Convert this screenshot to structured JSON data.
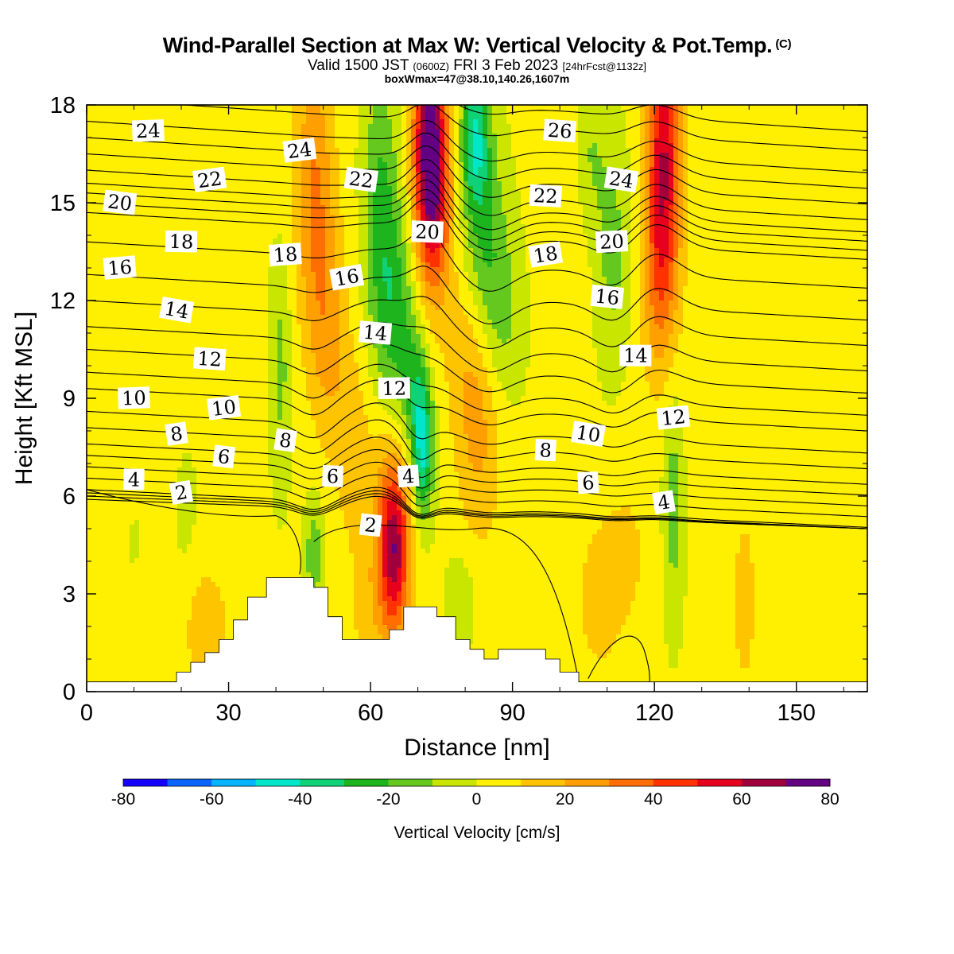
{
  "title": "Wind-Parallel Section at Max W: Vertical Velocity & Pot.Temp.",
  "title_mark": "(C)",
  "subtitle": {
    "prefix": "Valid 1500 JST",
    "utc": "(0600Z)",
    "date": "FRI 3 Feb 2023",
    "forecast": "[24hrFcst@1132z]"
  },
  "subtitle2": "boxWmax=47@38.10,140.26,1607m",
  "chart_data": {
    "type": "heatmap",
    "xlabel": "Distance [nm]",
    "ylabel": "Height [Kft MSL]",
    "xlim": [
      0,
      165
    ],
    "ylim": [
      0,
      18
    ],
    "xticks": [
      0,
      30,
      60,
      90,
      120,
      150
    ],
    "yticks": [
      0,
      3,
      6,
      9,
      12,
      15,
      18
    ],
    "grid": false,
    "colorbar": {
      "label": "Vertical Velocity [cm/s]",
      "placement": "bottom",
      "ticks": [
        -80,
        -60,
        -40,
        -20,
        0,
        20,
        40,
        60,
        80
      ],
      "bins": [
        -80,
        -70,
        -60,
        -50,
        -40,
        -30,
        -20,
        -10,
        0,
        10,
        20,
        30,
        40,
        50,
        60,
        70,
        80
      ],
      "colors": [
        "#1400ff",
        "#0a64ff",
        "#00b4ff",
        "#00e6c8",
        "#0fd278",
        "#1eb41e",
        "#64c81e",
        "#c8e600",
        "#ffef00",
        "#ffc400",
        "#ffa000",
        "#ff6e00",
        "#ff3200",
        "#e6001e",
        "#a0003c",
        "#640082"
      ]
    },
    "terrain_label": "",
    "terrain": [
      [
        0,
        0.3
      ],
      [
        19,
        0.3
      ],
      [
        19,
        0.6
      ],
      [
        22,
        0.6
      ],
      [
        22,
        0.9
      ],
      [
        25,
        0.9
      ],
      [
        25,
        1.2
      ],
      [
        28,
        1.2
      ],
      [
        28,
        1.6
      ],
      [
        31,
        1.6
      ],
      [
        31,
        2.2
      ],
      [
        34,
        2.2
      ],
      [
        34,
        2.9
      ],
      [
        38,
        2.9
      ],
      [
        38,
        3.5
      ],
      [
        48,
        3.5
      ],
      [
        48,
        3.2
      ],
      [
        51,
        3.2
      ],
      [
        51,
        2.3
      ],
      [
        54,
        2.3
      ],
      [
        54,
        1.6
      ],
      [
        64,
        1.6
      ],
      [
        64,
        1.9
      ],
      [
        67,
        1.9
      ],
      [
        67,
        2.6
      ],
      [
        74,
        2.6
      ],
      [
        74,
        2.3
      ],
      [
        78,
        2.3
      ],
      [
        78,
        1.6
      ],
      [
        81,
        1.6
      ],
      [
        81,
        1.3
      ],
      [
        84,
        1.3
      ],
      [
        84,
        1.0
      ],
      [
        87,
        1.0
      ],
      [
        87,
        1.3
      ],
      [
        97,
        1.3
      ],
      [
        97,
        1.0
      ],
      [
        100,
        1.0
      ],
      [
        100,
        0.6
      ],
      [
        104,
        0.6
      ],
      [
        104,
        0.3
      ],
      [
        165,
        0.3
      ]
    ],
    "w_cores": [
      {
        "x": 72.5,
        "y": 16.8,
        "sx": 2.5,
        "sy": 2.5,
        "w": 75
      },
      {
        "x": 74,
        "y": 14.5,
        "sx": 2.5,
        "sy": 2.0,
        "w": 22
      },
      {
        "x": 65,
        "y": 4.3,
        "sx": 2.2,
        "sy": 1.7,
        "w": 52
      },
      {
        "x": 64,
        "y": 5.8,
        "sx": 3.5,
        "sy": 2.5,
        "w": 18
      },
      {
        "x": 122,
        "y": 16.5,
        "sx": 2.5,
        "sy": 2.8,
        "w": 55
      },
      {
        "x": 121,
        "y": 12.5,
        "sx": 2.8,
        "sy": 2.2,
        "w": 24
      },
      {
        "x": 48,
        "y": 15.5,
        "sx": 3.0,
        "sy": 3.0,
        "w": 28
      },
      {
        "x": 51,
        "y": 11.0,
        "sx": 3.0,
        "sy": 2.5,
        "w": 20
      },
      {
        "x": 56,
        "y": 7.5,
        "sx": 2.5,
        "sy": 2.0,
        "w": 14
      },
      {
        "x": 83,
        "y": 8.0,
        "sx": 3.5,
        "sy": 2.5,
        "w": 20
      },
      {
        "x": 80,
        "y": 10.5,
        "sx": 3.5,
        "sy": 2.0,
        "w": 10
      },
      {
        "x": 25,
        "y": 2.0,
        "sx": 4.0,
        "sy": 1.5,
        "w": 14
      },
      {
        "x": 60,
        "y": 2.5,
        "sx": 4.0,
        "sy": 1.5,
        "w": 10
      },
      {
        "x": 108,
        "y": 2.8,
        "sx": 3.0,
        "sy": 1.5,
        "w": 14
      },
      {
        "x": 114,
        "y": 4.2,
        "sx": 4.0,
        "sy": 2.0,
        "w": 10
      },
      {
        "x": 139,
        "y": 2.5,
        "sx": 2.0,
        "sy": 2.0,
        "w": 12
      },
      {
        "x": 102,
        "y": 15.5,
        "sx": 4.0,
        "sy": 3.0,
        "w": 8
      },
      {
        "x": 8,
        "y": 9.0,
        "sx": 6.0,
        "sy": 2.0,
        "w": 6
      },
      {
        "x": 145,
        "y": 9.0,
        "sx": 12.0,
        "sy": 3.0,
        "w": 6
      },
      {
        "x": 30,
        "y": 16.5,
        "sx": 6.0,
        "sy": 2.0,
        "w": 5
      },
      {
        "x": 161,
        "y": 12.0,
        "sx": 3.5,
        "sy": 5.0,
        "w": 6
      },
      {
        "x": 62,
        "y": 15.0,
        "sx": 2.5,
        "sy": 3.0,
        "w": -22
      },
      {
        "x": 65,
        "y": 11.5,
        "sx": 2.8,
        "sy": 2.5,
        "w": -25
      },
      {
        "x": 71,
        "y": 7.5,
        "sx": 1.6,
        "sy": 1.5,
        "w": -45
      },
      {
        "x": 69,
        "y": 9.5,
        "sx": 2.0,
        "sy": 1.5,
        "w": -20
      },
      {
        "x": 82,
        "y": 17.0,
        "sx": 2.0,
        "sy": 1.5,
        "w": -38
      },
      {
        "x": 84,
        "y": 14.0,
        "sx": 3.0,
        "sy": 2.5,
        "w": -22
      },
      {
        "x": 88,
        "y": 11.5,
        "sx": 3.0,
        "sy": 2.0,
        "w": -14
      },
      {
        "x": 111,
        "y": 13.5,
        "sx": 2.5,
        "sy": 2.5,
        "w": -16
      },
      {
        "x": 106,
        "y": 16.5,
        "sx": 2.5,
        "sy": 1.8,
        "w": -15
      },
      {
        "x": 124,
        "y": 5.8,
        "sx": 1.5,
        "sy": 2.5,
        "w": -18
      },
      {
        "x": 48,
        "y": 4.2,
        "sx": 1.3,
        "sy": 1.2,
        "w": -20
      },
      {
        "x": 41,
        "y": 10.0,
        "sx": 1.5,
        "sy": 2.5,
        "w": -15
      },
      {
        "x": 79,
        "y": 2.8,
        "sx": 2.0,
        "sy": 1.0,
        "w": -12
      },
      {
        "x": 21,
        "y": 5.0,
        "sx": 2.0,
        "sy": 2.0,
        "w": -5
      },
      {
        "x": 10,
        "y": 5.5,
        "sx": 3.0,
        "sy": 2.0,
        "w": -3
      }
    ],
    "theta_levels": [
      1,
      2,
      3,
      4,
      5,
      6,
      7,
      8,
      9,
      10,
      11,
      12,
      13,
      14,
      15,
      16,
      17,
      18,
      19,
      20,
      21,
      22,
      23,
      24,
      25,
      26,
      27
    ],
    "theta_left_heights": [
      5.9,
      6.0,
      6.1,
      6.2,
      6.55,
      6.9,
      7.25,
      7.6,
      8.1,
      8.6,
      9.3,
      9.8,
      10.5,
      11.2,
      12.0,
      12.8,
      13.8,
      14.7,
      15.0,
      15.3,
      15.6,
      16.0,
      16.5,
      17.0,
      17.5,
      18.2,
      18.8
    ],
    "theta_labels": [
      {
        "text": "2",
        "x": 20,
        "y": 6.1
      },
      {
        "text": "2",
        "x": 60,
        "y": 5.1
      },
      {
        "text": "4",
        "x": 10,
        "y": 6.5
      },
      {
        "text": "4",
        "x": 68,
        "y": 6.6
      },
      {
        "text": "4",
        "x": 122,
        "y": 5.8
      },
      {
        "text": "6",
        "x": 29,
        "y": 7.2
      },
      {
        "text": "6",
        "x": 52,
        "y": 6.6
      },
      {
        "text": "6",
        "x": 106,
        "y": 6.4
      },
      {
        "text": "8",
        "x": 19,
        "y": 7.9
      },
      {
        "text": "8",
        "x": 42,
        "y": 7.7
      },
      {
        "text": "8",
        "x": 97,
        "y": 7.4
      },
      {
        "text": "10",
        "x": 10,
        "y": 9.0
      },
      {
        "text": "10",
        "x": 29,
        "y": 8.7
      },
      {
        "text": "10",
        "x": 106,
        "y": 7.9
      },
      {
        "text": "12",
        "x": 26,
        "y": 10.2
      },
      {
        "text": "12",
        "x": 65,
        "y": 9.3
      },
      {
        "text": "12",
        "x": 124,
        "y": 8.4
      },
      {
        "text": "14",
        "x": 19,
        "y": 11.7
      },
      {
        "text": "14",
        "x": 61,
        "y": 11.0
      },
      {
        "text": "14",
        "x": 116,
        "y": 10.3
      },
      {
        "text": "16",
        "x": 7,
        "y": 13.0
      },
      {
        "text": "16",
        "x": 55,
        "y": 12.7
      },
      {
        "text": "16",
        "x": 110,
        "y": 12.1
      },
      {
        "text": "18",
        "x": 20,
        "y": 13.8
      },
      {
        "text": "18",
        "x": 42,
        "y": 13.4
      },
      {
        "text": "18",
        "x": 97,
        "y": 13.4
      },
      {
        "text": "20",
        "x": 7,
        "y": 15.0
      },
      {
        "text": "20",
        "x": 72,
        "y": 14.1
      },
      {
        "text": "20",
        "x": 111,
        "y": 13.8
      },
      {
        "text": "22",
        "x": 26,
        "y": 15.7
      },
      {
        "text": "22",
        "x": 58,
        "y": 15.7
      },
      {
        "text": "22",
        "x": 97,
        "y": 15.2
      },
      {
        "text": "24",
        "x": 13,
        "y": 17.2
      },
      {
        "text": "24",
        "x": 45,
        "y": 16.6
      },
      {
        "text": "24",
        "x": 113,
        "y": 15.7
      },
      {
        "text": "26",
        "x": 100,
        "y": 17.2
      }
    ]
  }
}
